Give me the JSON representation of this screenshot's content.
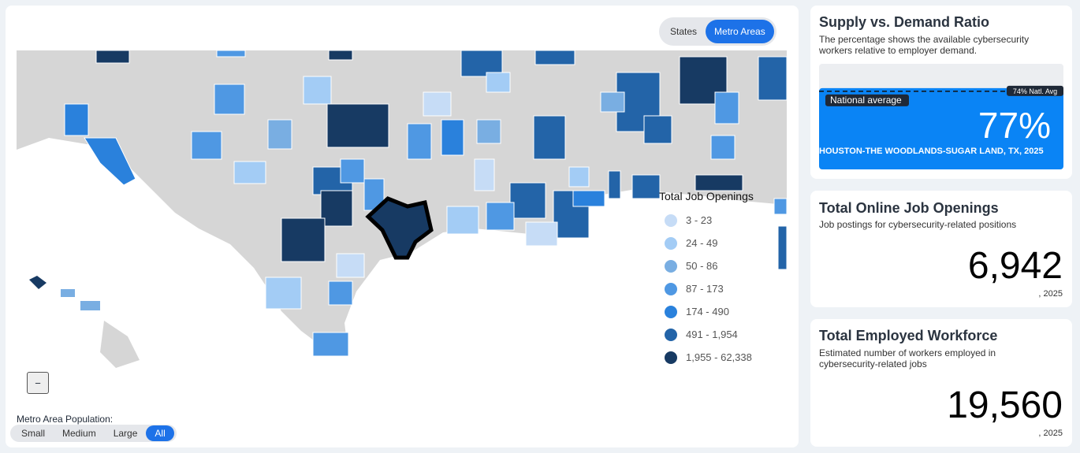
{
  "map": {
    "view_toggle": [
      "States",
      "Metro Areas"
    ],
    "active_view": "Metro Areas",
    "legend": {
      "title": "Total Job Openings",
      "items": [
        {
          "label": "3 - 23",
          "color": "#c6dcf6"
        },
        {
          "label": "24 - 49",
          "color": "#a3ccf5"
        },
        {
          "label": "50 - 86",
          "color": "#79aee2"
        },
        {
          "label": "87 - 173",
          "color": "#4f98e3"
        },
        {
          "label": "174 - 490",
          "color": "#2a81dc"
        },
        {
          "label": "491 - 1,954",
          "color": "#2364a8"
        },
        {
          "label": "1,955 - 62,338",
          "color": "#173a63"
        }
      ]
    },
    "zoom_out": "−",
    "population_filter": {
      "label": "Metro Area Population:",
      "options": [
        "Small",
        "Medium",
        "Large",
        "All"
      ],
      "active": "All"
    }
  },
  "cards": {
    "supply": {
      "title": "Supply vs. Demand Ratio",
      "description": "The percentage shows the available cybersecurity workers relative to employer demand.",
      "average_label": "National average",
      "ylim": [
        0,
        100
      ],
      "national_average": {
        "value": 74,
        "label": "74% Natl. Avg"
      },
      "ratio": {
        "value": 77,
        "label": "77%"
      },
      "location": "HOUSTON-THE WOODLANDS-SUGAR LAND, TX, 2025"
    },
    "openings": {
      "title": "Total Online Job Openings",
      "description": "Job postings for cybersecurity-related positions",
      "value": "6,942",
      "note": ", 2025"
    },
    "workforce": {
      "title": "Total Employed Workforce",
      "description": "Estimated number of workers employed in cybersecurity-related jobs",
      "value": "19,560",
      "note": ", 2025"
    }
  }
}
